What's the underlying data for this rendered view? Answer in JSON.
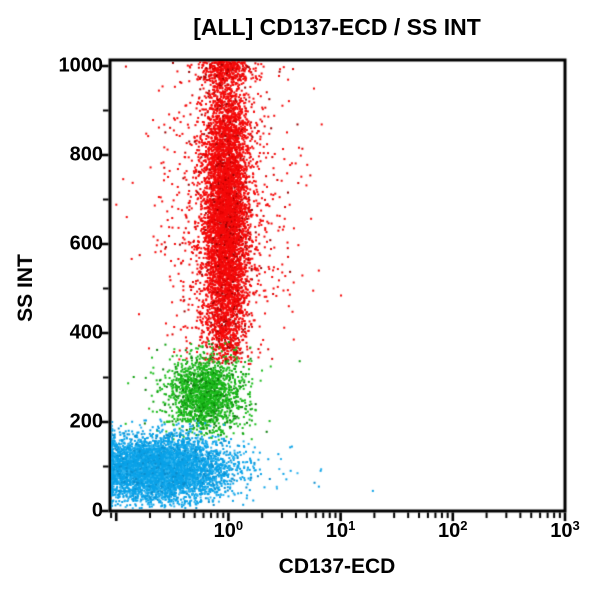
{
  "chart_data": {
    "type": "scatter",
    "title": "[ALL] CD137-ECD / SS INT",
    "xlabel": "CD137-ECD",
    "ylabel": "SS INT",
    "x_scale": "log",
    "x_min": 0.088,
    "x_max": 1000,
    "y_min": 0,
    "y_max": 1000,
    "grid": false,
    "legend": "none",
    "axis_color": "#000000",
    "background_color": "#ffffff",
    "x_major_ticks": [
      {
        "base": "10",
        "exp": "0",
        "value": 1
      },
      {
        "base": "10",
        "exp": "1",
        "value": 10
      },
      {
        "base": "10",
        "exp": "2",
        "value": 100
      },
      {
        "base": "10",
        "exp": "3",
        "value": 1000
      }
    ],
    "x_unlabeled_major_tick_value": 0.1,
    "y_major_ticks": [
      {
        "label": "0",
        "value": 0
      },
      {
        "label": "200",
        "value": 200
      },
      {
        "label": "400",
        "value": 400
      },
      {
        "label": "600",
        "value": 600
      },
      {
        "label": "800",
        "value": 800
      },
      {
        "label": "1000",
        "value": 1000
      }
    ],
    "y_minor_tick_values": [
      100,
      300,
      500,
      700,
      900
    ],
    "series": [
      {
        "name": "red-population",
        "colors": [
          "#f50a0a",
          "#dd0000",
          "#9b0000"
        ],
        "color_weights": [
          0.82,
          0.12,
          0.06
        ],
        "count": 5800,
        "halo_count": 1050,
        "x_center": 0.95,
        "x_sd_decades": 0.105,
        "halo_x_sd_decades": 0.3,
        "ss_mean": 660,
        "ss_sd": 195,
        "ss_min": 330,
        "ss_max": 1012
      },
      {
        "name": "green-population",
        "colors": [
          "#1ebd1e",
          "#0fa00f",
          "#0b7d0b"
        ],
        "color_weights": [
          0.72,
          0.18,
          0.1
        ],
        "count": 1500,
        "halo_count": 210,
        "x_center": 0.63,
        "x_sd_decades": 0.155,
        "halo_x_sd_decades": 0.3,
        "ss_mean": 262,
        "ss_sd": 46,
        "ss_min": 158,
        "ss_max": 392
      },
      {
        "name": "blue-population",
        "colors": [
          "#0aa2e8",
          "#31b4ef",
          "#0b8ccc"
        ],
        "color_weights": [
          0.7,
          0.2,
          0.1
        ],
        "count": 5200,
        "halo_count": 280,
        "x_center": 0.24,
        "x_sd_decades": 0.3,
        "halo_x_sd_decades": 0.55,
        "ss_mean": 95,
        "ss_sd": 36,
        "ss_min": 6,
        "ss_max": 208
      }
    ]
  }
}
